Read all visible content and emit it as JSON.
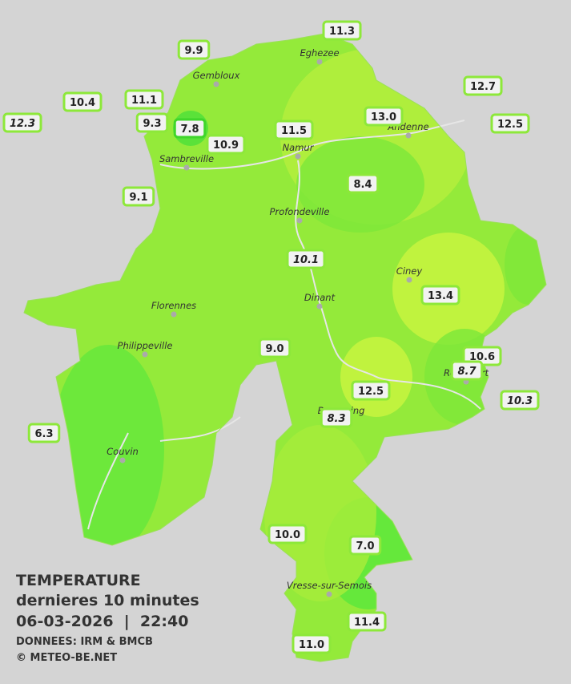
{
  "map": {
    "towns": [
      "Eghezee",
      "Gembloux",
      "Andenne",
      "Namur",
      "Sambreville",
      "Profondeville",
      "Ciney",
      "Dinant",
      "Florennes",
      "Philippeville",
      "Rochefort",
      "Beauraing",
      "Couvin",
      "Vresse-sur-Semois"
    ],
    "stations": [
      {
        "label": "11.3"
      },
      {
        "label": "9.9"
      },
      {
        "label": "12.7"
      },
      {
        "label": "10.4"
      },
      {
        "label": "11.1"
      },
      {
        "label": "12.3",
        "italic": true
      },
      {
        "label": "9.3"
      },
      {
        "label": "7.8"
      },
      {
        "label": "13.0"
      },
      {
        "label": "12.5"
      },
      {
        "label": "11.5"
      },
      {
        "label": "10.9"
      },
      {
        "label": "8.4"
      },
      {
        "label": "9.1"
      },
      {
        "label": "10.1",
        "italic": true
      },
      {
        "label": "13.4"
      },
      {
        "label": "9.0"
      },
      {
        "label": "10.6"
      },
      {
        "label": "8.7",
        "italic": true
      },
      {
        "label": "10.3",
        "italic": true
      },
      {
        "label": "12.5"
      },
      {
        "label": "8.3",
        "italic": true
      },
      {
        "label": "6.3"
      },
      {
        "label": "10.0"
      },
      {
        "label": "7.0"
      },
      {
        "label": "11.4"
      },
      {
        "label": "11.0"
      }
    ]
  },
  "caption": {
    "title": "TEMPERATURE",
    "subtitle": "dernieres 10 minutes",
    "datetime": "06-03-2026  |  22:40",
    "source": "DONNEES: IRM & BMCB",
    "copyright": "© METEO-BE.NET"
  }
}
